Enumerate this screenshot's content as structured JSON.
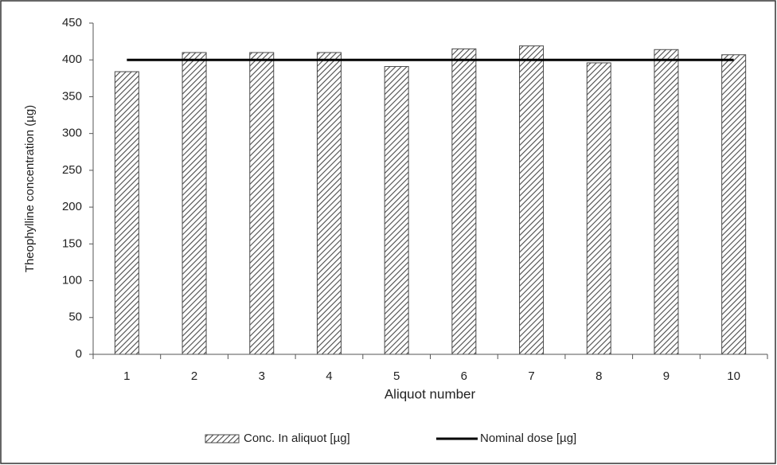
{
  "chart_data": {
    "type": "bar",
    "x_label": "Aliquot number",
    "y_label": "Theophylline concentration (µg)",
    "categories": [
      "1",
      "2",
      "3",
      "4",
      "5",
      "6",
      "7",
      "8",
      "9",
      "10"
    ],
    "series": [
      {
        "name": "Conc. In aliquot [µg]",
        "type": "bar",
        "color": "#4a4a4a",
        "values": [
          384,
          410,
          410,
          410,
          391,
          415,
          419,
          396,
          414,
          407
        ]
      },
      {
        "name": "Nominal dose [µg]",
        "type": "line",
        "color": "#000000",
        "values": [
          400,
          400,
          400,
          400,
          400,
          400,
          400,
          400,
          400,
          400
        ]
      }
    ],
    "ylim": [
      0,
      450
    ],
    "yticks": [
      0,
      50,
      100,
      150,
      200,
      250,
      300,
      350,
      400,
      450
    ],
    "grid": false
  }
}
